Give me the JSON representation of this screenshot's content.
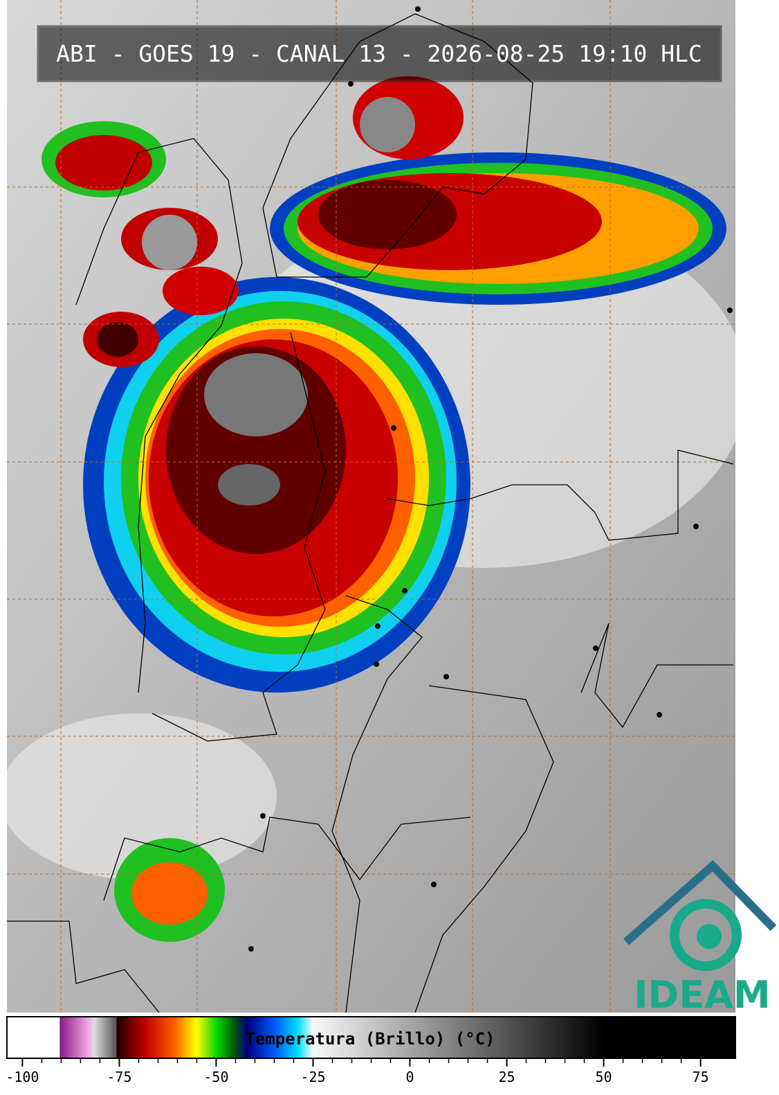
{
  "header": {
    "title": "ABI - GOES 19 - CANAL 13 - 2026-08-25 19:10 HLC"
  },
  "colorbar": {
    "label": "Temperatura (Brillo) (°C)",
    "lim": [
      -104,
      84
    ],
    "ticks": [
      -100,
      -75,
      -50,
      -25,
      0,
      25,
      50,
      75
    ]
  },
  "logo": {
    "text": "IDEAM"
  }
}
